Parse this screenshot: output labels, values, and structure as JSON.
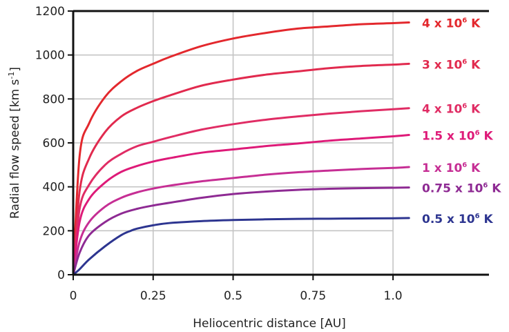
{
  "chart_data": {
    "type": "line",
    "xlabel": "Heliocentric distance [AU]",
    "ylabel": "Radial flow speed [km s",
    "ylabel_sup": "-1",
    "ylabel_end": "]",
    "xlim": [
      0,
      1.3
    ],
    "ylim": [
      0,
      1200
    ],
    "x_ticks": [
      0,
      0.25,
      0.5,
      0.75,
      1.0
    ],
    "x_tick_labels": [
      "0",
      "0.25",
      "0.5",
      "0.75",
      "1.0"
    ],
    "y_ticks": [
      0,
      200,
      400,
      600,
      800,
      1000,
      1200
    ],
    "y_tick_labels": [
      "0",
      "200",
      "400",
      "600",
      "800",
      "1000",
      "1200"
    ],
    "grid": true,
    "series": [
      {
        "name": "4 x 10⁶ K",
        "label": {
          "pre": "4 x 10",
          "sup": "6",
          "post": " K"
        },
        "color": "#e3282d",
        "x": [
          0,
          0.02,
          0.05,
          0.1,
          0.15,
          0.2,
          0.25,
          0.3,
          0.4,
          0.5,
          0.6,
          0.7,
          0.8,
          0.9,
          1.0,
          1.05
        ],
        "y": [
          0,
          540,
          690,
          810,
          880,
          928,
          960,
          990,
          1040,
          1075,
          1100,
          1120,
          1130,
          1140,
          1145,
          1148
        ]
      },
      {
        "name": "3 x 10⁶ K",
        "label": {
          "pre": "3 x 10",
          "sup": "6",
          "post": " K"
        },
        "color": "#e12a4e",
        "x": [
          0,
          0.02,
          0.05,
          0.1,
          0.15,
          0.2,
          0.25,
          0.3,
          0.4,
          0.5,
          0.6,
          0.7,
          0.8,
          0.9,
          1.0,
          1.05
        ],
        "y": [
          0,
          380,
          530,
          650,
          720,
          760,
          790,
          815,
          860,
          888,
          910,
          925,
          940,
          950,
          956,
          960
        ]
      },
      {
        "name": "4 x 10⁶ K",
        "label": {
          "pre": "4 x 10",
          "sup": "6",
          "post": " K"
        },
        "color": "#e02c64",
        "x": [
          0,
          0.02,
          0.05,
          0.1,
          0.15,
          0.2,
          0.25,
          0.3,
          0.4,
          0.5,
          0.6,
          0.7,
          0.8,
          0.9,
          1.0,
          1.05
        ],
        "y": [
          0,
          300,
          410,
          500,
          550,
          585,
          605,
          625,
          660,
          685,
          705,
          720,
          733,
          744,
          753,
          758
        ]
      },
      {
        "name": "1.5 x 10⁶ K",
        "label": {
          "pre": "1.5 x 10",
          "sup": "6",
          "post": " K"
        },
        "color": "#de1a78",
        "x": [
          0,
          0.02,
          0.05,
          0.1,
          0.15,
          0.2,
          0.25,
          0.3,
          0.4,
          0.5,
          0.6,
          0.7,
          0.8,
          0.9,
          1.0,
          1.05
        ],
        "y": [
          0,
          240,
          345,
          420,
          468,
          495,
          515,
          530,
          555,
          570,
          585,
          597,
          610,
          620,
          630,
          636
        ]
      },
      {
        "name": "1 x 10⁶ K",
        "label": {
          "pre": "1 x 10",
          "sup": "6",
          "post": " K"
        },
        "color": "#c62e94",
        "x": [
          0,
          0.02,
          0.05,
          0.1,
          0.15,
          0.2,
          0.25,
          0.3,
          0.4,
          0.5,
          0.6,
          0.7,
          0.8,
          0.9,
          1.0,
          1.05
        ],
        "y": [
          0,
          150,
          240,
          310,
          350,
          375,
          392,
          405,
          425,
          440,
          455,
          466,
          474,
          481,
          486,
          490
        ]
      },
      {
        "name": "0.75 x 10⁶ K",
        "label": {
          "pre": "0.75 x 10",
          "sup": "6",
          "post": " K"
        },
        "color": "#8e2a93",
        "x": [
          0,
          0.02,
          0.05,
          0.1,
          0.15,
          0.2,
          0.25,
          0.3,
          0.4,
          0.5,
          0.6,
          0.7,
          0.8,
          0.9,
          1.0,
          1.05
        ],
        "y": [
          0,
          100,
          180,
          240,
          278,
          300,
          315,
          327,
          350,
          367,
          378,
          386,
          391,
          394,
          396,
          397
        ]
      },
      {
        "name": "0.5 x 10⁶ K",
        "label": {
          "pre": "0.5 x 10",
          "sup": "6",
          "post": " K"
        },
        "color": "#2d3590",
        "x": [
          0,
          0.02,
          0.05,
          0.1,
          0.15,
          0.18,
          0.2,
          0.25,
          0.3,
          0.4,
          0.5,
          0.6,
          0.7,
          0.8,
          0.9,
          1.0,
          1.05
        ],
        "y": [
          0,
          25,
          70,
          130,
          180,
          200,
          210,
          225,
          235,
          244,
          249,
          252,
          254,
          255,
          256,
          257,
          258
        ]
      }
    ]
  }
}
